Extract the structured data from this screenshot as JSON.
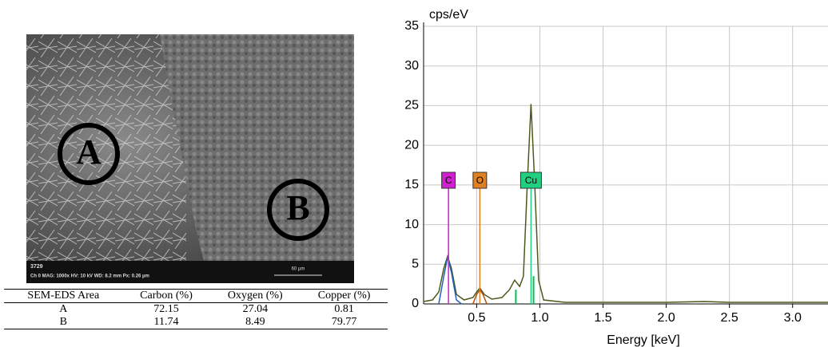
{
  "sem_image": {
    "labels": [
      "A",
      "B"
    ],
    "frame_number": "3729",
    "info": "Ch 0   MAG: 1000x   HV: 10 kV   WD: 8.2 mm   Px: 0.26 µm",
    "scale_bar": "60 µm"
  },
  "table": {
    "header": [
      "SEM-EDS Area",
      "Carbon (%)",
      "Oxygen (%)",
      "Copper (%)"
    ],
    "rows": [
      [
        "A",
        "72.15",
        "27.04",
        "0.81"
      ],
      [
        "B",
        "11.74",
        "8.49",
        "79.77"
      ]
    ]
  },
  "chart_data": {
    "type": "line",
    "y_label": "cps/eV",
    "x_label": "Energy [keV]",
    "xlim": [
      0.08,
      3.28
    ],
    "xticks": [
      0.5,
      {
        "value": 1,
        "label": "1.0"
      },
      1.5,
      {
        "value": 2,
        "label": "2.0"
      },
      2.5,
      {
        "value": 3,
        "label": "3.0"
      }
    ],
    "ylim": [
      0,
      35
    ],
    "yticks": [
      0,
      5,
      10,
      15,
      20,
      25,
      30,
      35
    ],
    "grid": true,
    "series": [
      {
        "color": "#4a5a1a",
        "x": [
          0.08,
          0.15,
          0.2,
          0.24,
          0.27,
          0.3,
          0.34,
          0.4,
          0.47,
          0.5,
          0.525,
          0.56,
          0.62,
          0.7,
          0.76,
          0.8,
          0.84,
          0.87,
          0.9,
          0.93,
          0.96,
          0.99,
          1.03,
          1.2,
          1.6,
          2.0,
          2.3,
          2.5,
          3.0,
          3.28
        ],
        "values": [
          0.3,
          0.5,
          1.5,
          4.5,
          6,
          4.5,
          1.2,
          0.5,
          0.8,
          1.5,
          2,
          1.2,
          0.6,
          0.8,
          1.8,
          3,
          2.2,
          3.5,
          15,
          25.2,
          15,
          3,
          0.5,
          0.2,
          0.2,
          0.2,
          0.3,
          0.2,
          0.2,
          0.2
        ]
      },
      {
        "color": "#2060c0",
        "x": [
          0.2,
          0.24,
          0.27,
          0.3,
          0.34,
          0.38
        ],
        "values": [
          0,
          3.5,
          5.9,
          4,
          0.5,
          0
        ]
      },
      {
        "color": "#b05010",
        "x": [
          0.47,
          0.5,
          0.525,
          0.55,
          0.58
        ],
        "values": [
          0,
          1.2,
          1.8,
          1.2,
          0
        ]
      }
    ],
    "peaks": {
      "color": "#00c050",
      "x": [
        0.81,
        0.95
      ],
      "values": [
        1.8,
        3.5
      ]
    },
    "element_markers": [
      {
        "label": "C",
        "x": 0.277,
        "color": "#d020d0"
      },
      {
        "label": "O",
        "x": 0.525,
        "color": "#e08020"
      },
      {
        "label": "Cu",
        "x": 0.93,
        "color": "#20d080"
      }
    ]
  }
}
